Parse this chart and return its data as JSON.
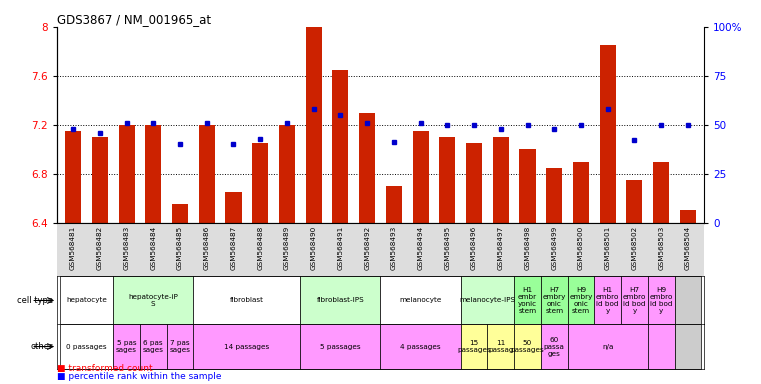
{
  "title": "GDS3867 / NM_001965_at",
  "samples": [
    "GSM568481",
    "GSM568482",
    "GSM568483",
    "GSM568484",
    "GSM568485",
    "GSM568486",
    "GSM568487",
    "GSM568488",
    "GSM568489",
    "GSM568490",
    "GSM568491",
    "GSM568492",
    "GSM568493",
    "GSM568494",
    "GSM568495",
    "GSM568496",
    "GSM568497",
    "GSM568498",
    "GSM568499",
    "GSM568500",
    "GSM568501",
    "GSM568502",
    "GSM568503",
    "GSM568504"
  ],
  "bar_values": [
    7.15,
    7.1,
    7.2,
    7.2,
    6.55,
    7.2,
    6.65,
    7.05,
    7.2,
    8.0,
    7.65,
    7.3,
    6.7,
    7.15,
    7.1,
    7.05,
    7.1,
    7.0,
    6.85,
    6.9,
    7.85,
    6.75,
    6.9,
    6.5
  ],
  "percentile_pct": [
    48,
    46,
    51,
    51,
    40,
    51,
    40,
    43,
    51,
    58,
    55,
    51,
    41,
    51,
    50,
    50,
    48,
    50,
    48,
    50,
    58,
    42,
    50,
    50
  ],
  "ylim": [
    6.4,
    8.0
  ],
  "yticks": [
    6.4,
    6.8,
    7.2,
    7.6,
    8.0
  ],
  "ytick_labels": [
    "6.4",
    "6.8",
    "7.2",
    "7.6",
    "8"
  ],
  "right_yticks": [
    0,
    25,
    50,
    75,
    100
  ],
  "right_ytick_labels": [
    "0",
    "25",
    "50",
    "75",
    "100%"
  ],
  "bar_color": "#CC2200",
  "percentile_color": "#0000CC",
  "cell_groups": [
    {
      "label": "hepatocyte",
      "start": 0,
      "end": 1,
      "color": "#FFFFFF"
    },
    {
      "label": "hepatocyte-iP\nS",
      "start": 2,
      "end": 4,
      "color": "#CCFFCC"
    },
    {
      "label": "fibroblast",
      "start": 5,
      "end": 8,
      "color": "#FFFFFF"
    },
    {
      "label": "fibroblast-IPS",
      "start": 9,
      "end": 11,
      "color": "#CCFFCC"
    },
    {
      "label": "melanocyte",
      "start": 12,
      "end": 14,
      "color": "#FFFFFF"
    },
    {
      "label": "melanocyte-IPS",
      "start": 15,
      "end": 16,
      "color": "#CCFFCC"
    },
    {
      "label": "H1\nembr\nyonic\nstem",
      "start": 17,
      "end": 17,
      "color": "#99FF99"
    },
    {
      "label": "H7\nembry\nonic\nstem",
      "start": 18,
      "end": 18,
      "color": "#99FF99"
    },
    {
      "label": "H9\nembry\nonic\nstem",
      "start": 19,
      "end": 19,
      "color": "#99FF99"
    },
    {
      "label": "H1\nembro\nid bod\ny",
      "start": 20,
      "end": 20,
      "color": "#FF99FF"
    },
    {
      "label": "H7\nembro\nid bod\ny",
      "start": 21,
      "end": 21,
      "color": "#FF99FF"
    },
    {
      "label": "H9\nembro\nid bod\ny",
      "start": 22,
      "end": 22,
      "color": "#FF99FF"
    },
    {
      "label": "",
      "start": 23,
      "end": 23,
      "color": "#CCCCCC"
    }
  ],
  "other_groups": [
    {
      "label": "0 passages",
      "start": 0,
      "end": 1,
      "color": "#FFFFFF"
    },
    {
      "label": "5 pas\nsages",
      "start": 2,
      "end": 2,
      "color": "#FF99FF"
    },
    {
      "label": "6 pas\nsages",
      "start": 3,
      "end": 3,
      "color": "#FF99FF"
    },
    {
      "label": "7 pas\nsages",
      "start": 4,
      "end": 4,
      "color": "#FF99FF"
    },
    {
      "label": "14 passages",
      "start": 5,
      "end": 8,
      "color": "#FF99FF"
    },
    {
      "label": "5 passages",
      "start": 9,
      "end": 11,
      "color": "#FF99FF"
    },
    {
      "label": "4 passages",
      "start": 12,
      "end": 14,
      "color": "#FF99FF"
    },
    {
      "label": "15\npassages",
      "start": 15,
      "end": 15,
      "color": "#FFFF99"
    },
    {
      "label": "11\npassag",
      "start": 16,
      "end": 16,
      "color": "#FFFF99"
    },
    {
      "label": "50\npassages",
      "start": 17,
      "end": 17,
      "color": "#FFFF99"
    },
    {
      "label": "60\npassa\nges",
      "start": 18,
      "end": 18,
      "color": "#FF99FF"
    },
    {
      "label": "n/a",
      "start": 19,
      "end": 21,
      "color": "#FF99FF"
    },
    {
      "label": "",
      "start": 22,
      "end": 22,
      "color": "#FF99FF"
    },
    {
      "label": "",
      "start": 23,
      "end": 23,
      "color": "#CCCCCC"
    }
  ],
  "n_samples": 24
}
